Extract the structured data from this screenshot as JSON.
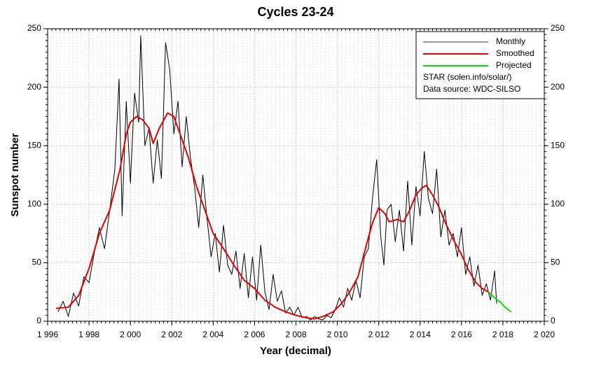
{
  "chart_data": {
    "type": "line",
    "title": "Cycles 23-24",
    "xlabel": "Year (decimal)",
    "ylabel": "Sunspot number",
    "xlim": [
      1996,
      2020
    ],
    "xticks": [
      {
        "value": 1996,
        "label": "1 996"
      },
      {
        "value": 1998,
        "label": "1 998"
      },
      {
        "value": 2000,
        "label": "2 000"
      },
      {
        "value": 2002,
        "label": "2 002"
      },
      {
        "value": 2004,
        "label": "2 004"
      },
      {
        "value": 2006,
        "label": "2 006"
      },
      {
        "value": 2008,
        "label": "2 008"
      },
      {
        "value": 2010,
        "label": "2 010"
      },
      {
        "value": 2012,
        "label": "2 012"
      },
      {
        "value": 2014,
        "label": "2 014"
      },
      {
        "value": 2016,
        "label": "2 016"
      },
      {
        "value": 2018,
        "label": "2 018"
      },
      {
        "value": 2020,
        "label": "2 020"
      }
    ],
    "ylim": [
      0,
      250
    ],
    "yticks": [
      0,
      50,
      100,
      150,
      200,
      250
    ],
    "grid": true,
    "legend": "upper right",
    "legend_notes": [
      "STAR (solen.info/solar/)",
      "Data source: WDC-SILSO"
    ],
    "series": [
      {
        "name": "Monthly",
        "color": "#000000",
        "legend_color": "#999999",
        "width": 1,
        "x": [
          1996.5,
          1996.75,
          1997.0,
          1997.25,
          1997.5,
          1997.75,
          1998.0,
          1998.25,
          1998.5,
          1998.75,
          1999.0,
          1999.25,
          1999.45,
          1999.6,
          1999.8,
          2000.0,
          2000.2,
          2000.4,
          2000.5,
          2000.7,
          2000.9,
          2001.1,
          2001.3,
          2001.5,
          2001.7,
          2001.9,
          2002.1,
          2002.3,
          2002.5,
          2002.7,
          2002.9,
          2003.1,
          2003.3,
          2003.5,
          2003.7,
          2003.9,
          2004.1,
          2004.3,
          2004.5,
          2004.7,
          2004.9,
          2005.1,
          2005.3,
          2005.5,
          2005.7,
          2005.9,
          2006.1,
          2006.3,
          2006.5,
          2006.7,
          2006.9,
          2007.1,
          2007.3,
          2007.5,
          2007.7,
          2007.9,
          2008.1,
          2008.3,
          2008.5,
          2008.7,
          2008.9,
          2009.1,
          2009.3,
          2009.5,
          2009.7,
          2009.9,
          2010.1,
          2010.3,
          2010.5,
          2010.7,
          2010.9,
          2011.1,
          2011.3,
          2011.5,
          2011.7,
          2011.9,
          2012.1,
          2012.25,
          2012.4,
          2012.6,
          2012.8,
          2013.0,
          2013.2,
          2013.4,
          2013.6,
          2013.8,
          2014.0,
          2014.2,
          2014.4,
          2014.6,
          2014.8,
          2015.0,
          2015.2,
          2015.4,
          2015.6,
          2015.8,
          2016.0,
          2016.2,
          2016.4,
          2016.6,
          2016.8,
          2017.0,
          2017.2,
          2017.4,
          2017.6,
          2017.7
        ],
        "values": [
          8,
          17,
          4,
          24,
          13,
          38,
          33,
          58,
          80,
          62,
          95,
          130,
          207,
          90,
          188,
          118,
          195,
          170,
          244,
          150,
          165,
          118,
          155,
          122,
          238,
          215,
          160,
          188,
          132,
          175,
          140,
          115,
          80,
          125,
          88,
          55,
          75,
          42,
          82,
          48,
          40,
          60,
          28,
          58,
          20,
          55,
          18,
          65,
          25,
          10,
          40,
          17,
          26,
          7,
          12,
          5,
          12,
          3,
          4,
          1,
          4,
          2,
          1,
          5,
          3,
          10,
          20,
          12,
          28,
          18,
          35,
          20,
          55,
          62,
          105,
          138,
          72,
          48,
          95,
          100,
          68,
          95,
          60,
          120,
          65,
          115,
          90,
          145,
          105,
          92,
          130,
          72,
          95,
          65,
          75,
          55,
          80,
          40,
          55,
          30,
          48,
          22,
          32,
          18,
          43,
          15
        ]
      },
      {
        "name": "Smoothed",
        "color": "#e00000",
        "width": 2,
        "x": [
          1996.4,
          1997.0,
          1997.5,
          1998.0,
          1998.5,
          1999.0,
          1999.5,
          1999.8,
          2000.0,
          2000.3,
          2000.6,
          2000.9,
          2001.1,
          2001.4,
          2001.8,
          2002.1,
          2002.4,
          2002.8,
          2003.2,
          2003.6,
          2004.0,
          2004.5,
          2005.0,
          2005.5,
          2006.0,
          2006.5,
          2007.0,
          2007.5,
          2008.0,
          2008.5,
          2008.9,
          2009.3,
          2009.8,
          2010.2,
          2010.6,
          2011.0,
          2011.4,
          2011.7,
          2012.0,
          2012.3,
          2012.5,
          2012.9,
          2013.2,
          2013.5,
          2013.8,
          2014.1,
          2014.3,
          2014.6,
          2014.9,
          2015.2,
          2015.6,
          2016.0,
          2016.3,
          2016.7,
          2017.0,
          2017.3
        ],
        "values": [
          11,
          12,
          22,
          45,
          75,
          95,
          130,
          160,
          170,
          175,
          172,
          165,
          152,
          165,
          178,
          175,
          160,
          140,
          115,
          95,
          75,
          62,
          48,
          35,
          28,
          18,
          12,
          8,
          5,
          3,
          2,
          4,
          8,
          15,
          25,
          38,
          65,
          84,
          97,
          92,
          85,
          87,
          85,
          95,
          108,
          114,
          116,
          108,
          98,
          85,
          70,
          57,
          45,
          33,
          28,
          25
        ]
      },
      {
        "name": "Projected",
        "color": "#00e000",
        "width": 2,
        "x": [
          2017.3,
          2017.6,
          2017.9,
          2018.1,
          2018.4
        ],
        "values": [
          25,
          20,
          16,
          12,
          8
        ]
      }
    ]
  }
}
